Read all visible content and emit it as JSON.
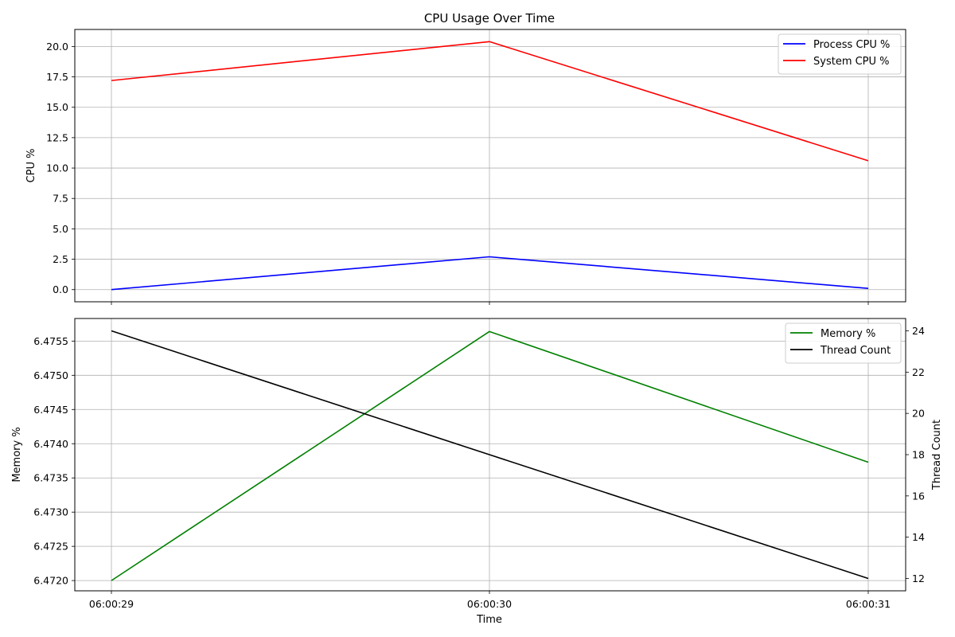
{
  "chart_data": [
    {
      "type": "line",
      "title": "CPU Usage Over Time",
      "xlabel": "",
      "ylabel": "CPU %",
      "x": [
        "06:00:29",
        "06:00:30",
        "06:00:31"
      ],
      "ylim": [
        -1.0,
        21.4
      ],
      "yticks": [
        "0.0",
        "2.5",
        "5.0",
        "7.5",
        "10.0",
        "12.5",
        "15.0",
        "17.5",
        "20.0"
      ],
      "grid": true,
      "legend_position": "top-right",
      "series": [
        {
          "name": "Process CPU %",
          "color": "#0000ff",
          "values": [
            0.0,
            2.7,
            0.1
          ]
        },
        {
          "name": "System CPU %",
          "color": "#ff0000",
          "values": [
            17.2,
            20.4,
            10.6
          ]
        }
      ]
    },
    {
      "type": "line",
      "title": "",
      "xlabel": "Time",
      "ylabel": "Memory %",
      "y2label": "Thread Count",
      "x": [
        "06:00:29",
        "06:00:30",
        "06:00:31"
      ],
      "ylim": [
        6.47185,
        6.47583
      ],
      "y2lim": [
        11.4,
        24.6
      ],
      "yticks": [
        "6.4720",
        "6.4725",
        "6.4730",
        "6.4735",
        "6.4740",
        "6.4745",
        "6.4750",
        "6.4755"
      ],
      "y2ticks": [
        "12",
        "14",
        "16",
        "18",
        "20",
        "22",
        "24"
      ],
      "grid": true,
      "legend_position": "top-right",
      "series": [
        {
          "name": "Memory %",
          "color": "#008000",
          "axis": "left",
          "values": [
            6.472,
            6.47564,
            6.47373
          ]
        },
        {
          "name": "Thread Count",
          "color": "#000000",
          "axis": "right",
          "values": [
            24,
            18,
            12
          ]
        }
      ]
    }
  ]
}
